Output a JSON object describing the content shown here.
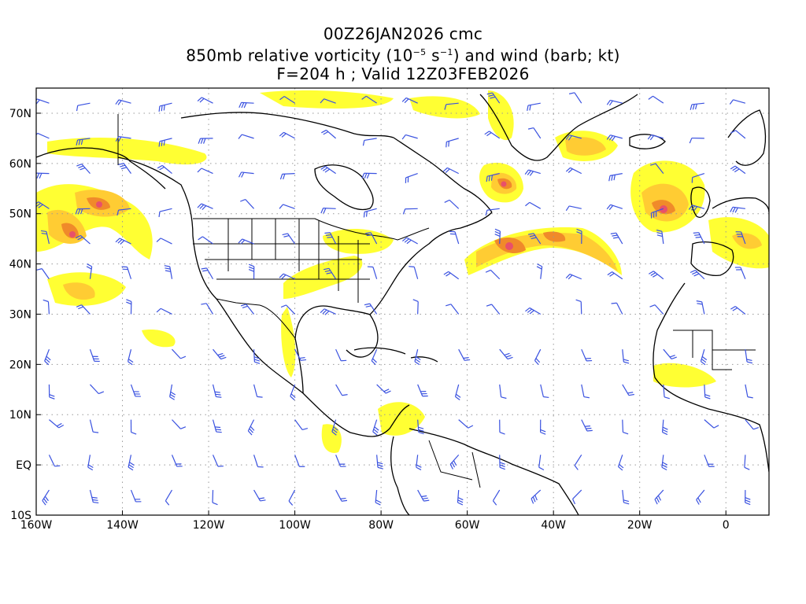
{
  "title": {
    "line1": "00Z26JAN2026 cmc",
    "line2_prefix": "850mb relative vorticity (10",
    "line2_exp1": "−5",
    "line2_mid": " s",
    "line2_exp2": "−1",
    "line2_suffix": ") and wind (barb; kt)",
    "line3": "F=204 h ; Valid 12Z03FEB2026"
  },
  "map": {
    "lon_range": [
      -160,
      10
    ],
    "lat_range": [
      -10,
      75
    ],
    "lon_ticks": [
      "160W",
      "140W",
      "120W",
      "100W",
      "80W",
      "60W",
      "40W",
      "20W",
      "0"
    ],
    "lat_ticks": [
      "70N",
      "60N",
      "50N",
      "40N",
      "30N",
      "20N",
      "10N",
      "EQ",
      "10S"
    ],
    "lon_tick_values": [
      -160,
      -140,
      -120,
      -100,
      -80,
      -60,
      -40,
      -20,
      0
    ],
    "lat_tick_values": [
      70,
      60,
      50,
      40,
      30,
      20,
      10,
      0,
      -10
    ],
    "colors": {
      "vort_low": "#ffff33",
      "vort_mid": "#ffcc33",
      "vort_high": "#f08a2a",
      "vort_peak": "#e8506a",
      "barb": "#3a52e0",
      "coast": "#000000",
      "grid": "#999999"
    },
    "vorticity_centers": [
      {
        "lon": -155,
        "lat": 46,
        "level": 4
      },
      {
        "lon": -145,
        "lat": 51,
        "level": 3
      },
      {
        "lon": -150,
        "lat": 35,
        "level": 2
      },
      {
        "lon": -52,
        "lat": 56,
        "level": 3
      },
      {
        "lon": -50,
        "lat": 43,
        "level": 4
      },
      {
        "lon": -38,
        "lat": 45,
        "level": 3
      },
      {
        "lon": -14,
        "lat": 51,
        "level": 4
      },
      {
        "lon": -35,
        "lat": 66,
        "level": 2
      },
      {
        "lon": 5,
        "lat": 44,
        "level": 2
      }
    ]
  }
}
